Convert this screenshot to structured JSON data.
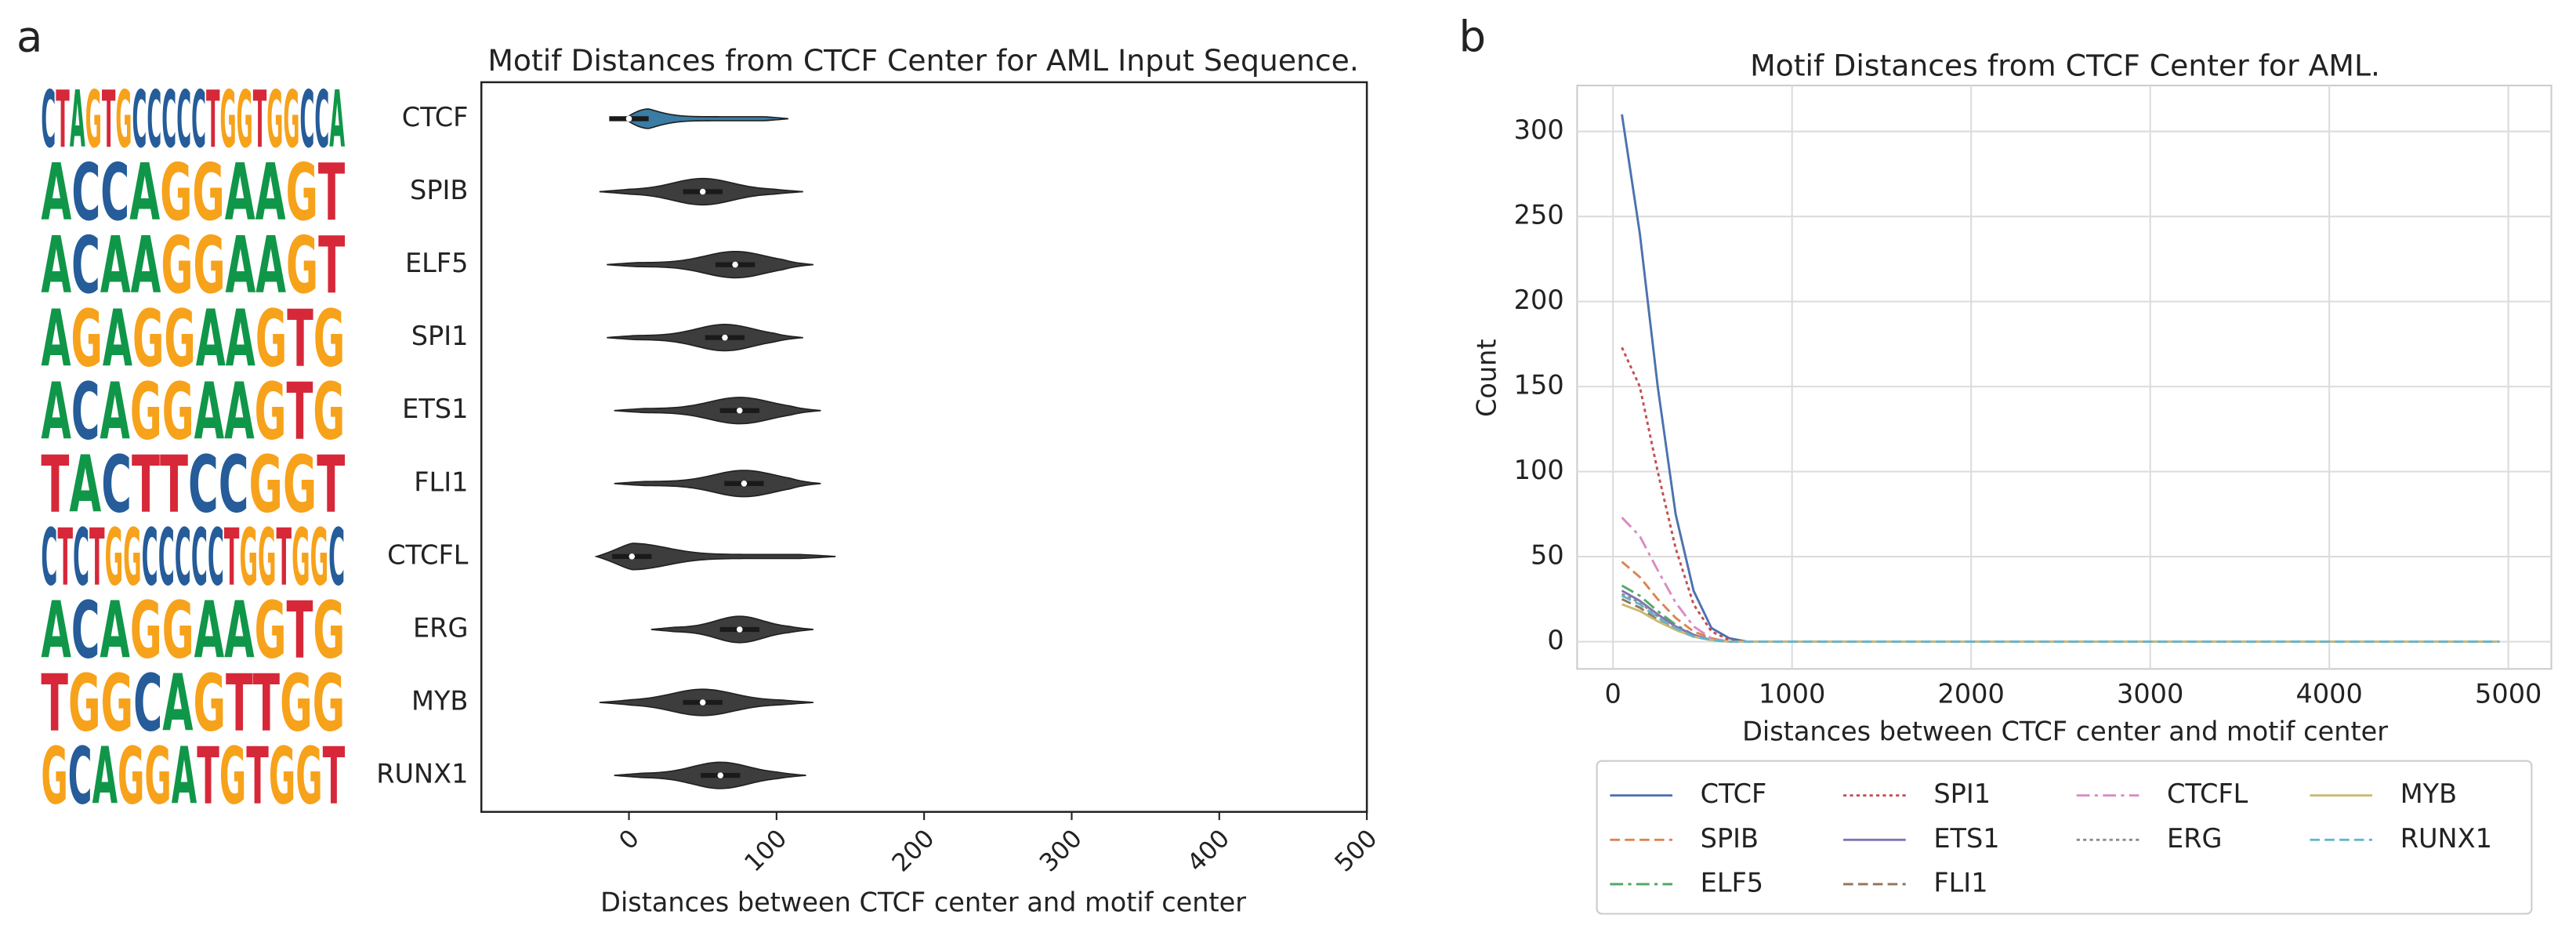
{
  "chart_data": [
    {
      "type": "violin",
      "panel_label": "a",
      "title": "Motif Distances from CTCF Center for AML Input Sequence.",
      "xlabel": "Distances between CTCF center and motif center",
      "categories": [
        "CTCF",
        "SPIB",
        "ELF5",
        "SPI1",
        "ETS1",
        "FLI1",
        "CTCFL",
        "ERG",
        "MYB",
        "RUNX1"
      ],
      "logos": [
        "CTAGTGCCCCCTGGTGGCCA",
        "ACCAGGAAGT",
        "ACAAGGAAGT",
        "AGAGGAAGTG",
        "ACAGGAAGTG",
        "TACTTCCGGT",
        "CTCTGGCCCCCTGGTGGC",
        "ACAGGAAGTG",
        "TGGCAGTTGG",
        "GCAGGATGTGGT"
      ],
      "min": [
        -3,
        -20,
        -15,
        -15,
        -10,
        -10,
        -22,
        15,
        -20,
        -10
      ],
      "median": [
        0,
        50,
        72,
        65,
        75,
        78,
        2,
        75,
        50,
        62
      ],
      "max": [
        108,
        118,
        125,
        118,
        130,
        130,
        140,
        125,
        125,
        120
      ],
      "colors": [
        "#3a7ca5",
        "#3d3d3d",
        "#3d3d3d",
        "#3d3d3d",
        "#3d3d3d",
        "#3d3d3d",
        "#3d3d3d",
        "#3d3d3d",
        "#3d3d3d",
        "#3d3d3d"
      ],
      "xlim": [
        -100,
        500
      ],
      "xticks": [
        0,
        100,
        200,
        300,
        400,
        500
      ]
    },
    {
      "type": "line",
      "panel_label": "b",
      "title": "Motif Distances from CTCF Center for AML.",
      "xlabel": "Distances between CTCF center and motif center",
      "ylabel": "Count",
      "x": [
        50,
        150,
        250,
        350,
        450,
        550,
        650,
        750,
        850,
        950,
        4950
      ],
      "series": [
        {
          "name": "CTCF",
          "color": "#4c72b0",
          "dash": "solid",
          "values": [
            310,
            240,
            150,
            75,
            30,
            8,
            2,
            0,
            0,
            0,
            0
          ]
        },
        {
          "name": "SPIB",
          "color": "#dd8452",
          "dash": "dashed",
          "values": [
            47,
            38,
            25,
            14,
            6,
            2,
            0,
            0,
            0,
            0,
            0
          ]
        },
        {
          "name": "ELF5",
          "color": "#55a868",
          "dash": "dashdot",
          "values": [
            33,
            27,
            18,
            10,
            4,
            1,
            0,
            0,
            0,
            0,
            0
          ]
        },
        {
          "name": "SPI1",
          "color": "#c44e52",
          "dash": "dotted",
          "values": [
            173,
            150,
            100,
            55,
            22,
            6,
            1,
            0,
            0,
            0,
            0
          ]
        },
        {
          "name": "ETS1",
          "color": "#8172b3",
          "dash": "solid",
          "values": [
            30,
            24,
            16,
            9,
            4,
            1,
            0,
            0,
            0,
            0,
            0
          ]
        },
        {
          "name": "FLI1",
          "color": "#937860",
          "dash": "dashed",
          "values": [
            25,
            20,
            13,
            7,
            3,
            1,
            0,
            0,
            0,
            0,
            0
          ]
        },
        {
          "name": "CTCFL",
          "color": "#da8bc3",
          "dash": "dashdot",
          "values": [
            73,
            62,
            42,
            23,
            9,
            2,
            0,
            0,
            0,
            0,
            0
          ]
        },
        {
          "name": "ERG",
          "color": "#8c8c8c",
          "dash": "dotted",
          "values": [
            28,
            23,
            15,
            8,
            3,
            1,
            0,
            0,
            0,
            0,
            0
          ]
        },
        {
          "name": "MYB",
          "color": "#ccb974",
          "dash": "solid",
          "values": [
            22,
            18,
            12,
            7,
            3,
            1,
            0,
            0,
            0,
            0,
            0
          ]
        },
        {
          "name": "RUNX1",
          "color": "#64b5cd",
          "dash": "dashed",
          "values": [
            27,
            22,
            14,
            8,
            3,
            1,
            0,
            0,
            0,
            0,
            0
          ]
        }
      ],
      "xlim": [
        -200,
        5240
      ],
      "ylim": [
        -16,
        327
      ],
      "xticks": [
        0,
        1000,
        2000,
        3000,
        4000,
        5000
      ],
      "yticks": [
        0,
        50,
        100,
        150,
        200,
        250,
        300
      ],
      "grid": true,
      "legend": "below"
    }
  ]
}
